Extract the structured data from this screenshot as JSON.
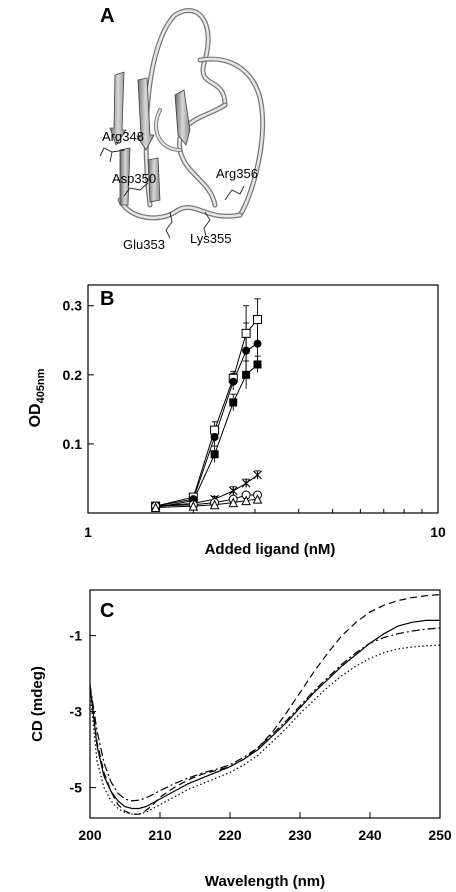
{
  "panel_a": {
    "letter": "A",
    "residue_labels": [
      "Arg348",
      "Asp350",
      "Arg356",
      "Glu353",
      "Lys355"
    ]
  },
  "chart_data": [
    {
      "panel": "B",
      "type": "line",
      "xscale": "log",
      "xlabel": "Added ligand (nM)",
      "ylabel_main": "OD",
      "ylabel_sub": "405nm",
      "xlim": [
        1,
        10
      ],
      "ylim": [
        0,
        0.33
      ],
      "xticks": [
        1,
        10
      ],
      "xtick_labels": [
        "1",
        "10"
      ],
      "yticks": [
        0.1,
        0.2,
        0.3
      ],
      "ytick_labels": [
        "0.1",
        "0.2",
        "0.3"
      ],
      "x": [
        1.56,
        2.0,
        2.3,
        2.6,
        2.83,
        3.05
      ],
      "series": [
        {
          "marker": "open-square",
          "values": [
            0.01,
            0.023,
            0.12,
            0.195,
            0.26,
            0.28
          ],
          "err": [
            0.003,
            0.004,
            0.012,
            0.01,
            0.04,
            0.03
          ]
        },
        {
          "marker": "filled-circle",
          "values": [
            0.01,
            0.02,
            0.11,
            0.19,
            0.235,
            0.245
          ],
          "err": [
            0.003,
            0.004,
            0.012,
            0.012,
            0.04,
            0.04
          ]
        },
        {
          "marker": "filled-square",
          "values": [
            0.008,
            0.018,
            0.085,
            0.16,
            0.2,
            0.215
          ],
          "err": [
            0.003,
            0.004,
            0.012,
            0.012,
            0.02,
            0.012
          ]
        },
        {
          "marker": "asterisk",
          "values": [
            0.01,
            0.014,
            0.02,
            0.032,
            0.043,
            0.055
          ],
          "err": [
            0.003,
            0.003,
            0.004,
            0.006,
            0.006,
            0.006
          ]
        },
        {
          "marker": "open-circle",
          "values": [
            0.01,
            0.012,
            0.015,
            0.02,
            0.026,
            0.026
          ],
          "err": [
            0.003,
            0.003,
            0.003,
            0.003,
            0.004,
            0.004
          ]
        },
        {
          "marker": "open-triangle",
          "values": [
            0.008,
            0.01,
            0.012,
            0.015,
            0.018,
            0.02
          ],
          "err": [
            0.002,
            0.002,
            0.002,
            0.002,
            0.003,
            0.003
          ]
        }
      ]
    },
    {
      "panel": "C",
      "type": "line",
      "xlabel": "Wavelength (nm)",
      "ylabel": "CD (mdeg)",
      "xlim": [
        200,
        250
      ],
      "ylim": [
        -5.8,
        0.2
      ],
      "xticks": [
        200,
        210,
        220,
        230,
        240,
        250
      ],
      "xtick_labels": [
        "200",
        "210",
        "220",
        "230",
        "240",
        "250"
      ],
      "yticks": [
        -1,
        -3,
        -5
      ],
      "ytick_labels": [
        "-1",
        "-3",
        "-5"
      ],
      "x": [
        200,
        201,
        202,
        203,
        204,
        205,
        206,
        207,
        208,
        209,
        210,
        212,
        214,
        216,
        218,
        220,
        222,
        224,
        226,
        228,
        230,
        232,
        234,
        236,
        238,
        240,
        242,
        244,
        246,
        248,
        250
      ],
      "series": [
        {
          "line_style": "solid",
          "values": [
            -2.3,
            -3.9,
            -4.7,
            -5.1,
            -5.35,
            -5.5,
            -5.55,
            -5.55,
            -5.5,
            -5.4,
            -5.3,
            -5.1,
            -4.9,
            -4.75,
            -4.6,
            -4.45,
            -4.25,
            -4.0,
            -3.65,
            -3.3,
            -2.9,
            -2.5,
            -2.15,
            -1.8,
            -1.5,
            -1.2,
            -0.95,
            -0.75,
            -0.65,
            -0.6,
            -0.6
          ]
        },
        {
          "line_style": "dashed",
          "values": [
            -2.3,
            -3.8,
            -4.6,
            -5.1,
            -5.45,
            -5.62,
            -5.7,
            -5.7,
            -5.6,
            -5.45,
            -5.25,
            -5.0,
            -4.8,
            -4.65,
            -4.55,
            -4.45,
            -4.25,
            -3.95,
            -3.55,
            -3.05,
            -2.5,
            -1.95,
            -1.45,
            -1.0,
            -0.65,
            -0.38,
            -0.2,
            -0.08,
            0.0,
            0.05,
            0.08
          ]
        },
        {
          "line_style": "dash-dot",
          "values": [
            -2.3,
            -3.5,
            -4.35,
            -4.85,
            -5.15,
            -5.3,
            -5.35,
            -5.33,
            -5.27,
            -5.18,
            -5.08,
            -4.9,
            -4.75,
            -4.62,
            -4.52,
            -4.4,
            -4.2,
            -3.95,
            -3.6,
            -3.25,
            -2.85,
            -2.45,
            -2.1,
            -1.75,
            -1.45,
            -1.2,
            -1.05,
            -0.95,
            -0.88,
            -0.83,
            -0.8
          ]
        },
        {
          "line_style": "dotted",
          "values": [
            -2.5,
            -4.3,
            -5.0,
            -5.35,
            -5.55,
            -5.65,
            -5.7,
            -5.7,
            -5.65,
            -5.55,
            -5.45,
            -5.25,
            -5.05,
            -4.9,
            -4.75,
            -4.6,
            -4.4,
            -4.15,
            -3.8,
            -3.45,
            -3.05,
            -2.7,
            -2.35,
            -2.05,
            -1.8,
            -1.6,
            -1.45,
            -1.35,
            -1.3,
            -1.27,
            -1.25
          ]
        }
      ]
    }
  ]
}
